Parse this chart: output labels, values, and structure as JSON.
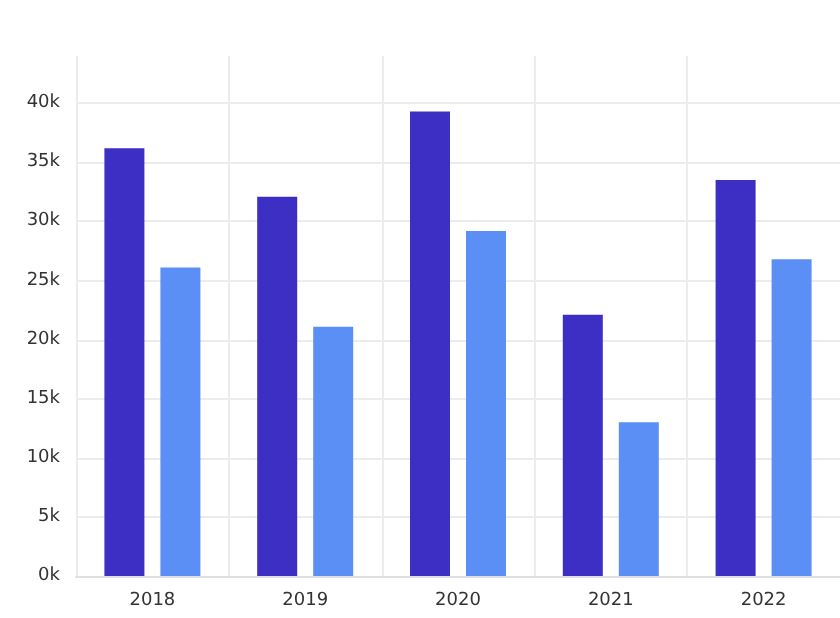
{
  "chart_data": {
    "type": "bar",
    "categories": [
      "2018",
      "2019",
      "2020",
      "2021",
      "2022"
    ],
    "series": [
      {
        "color": "#3d2ec4",
        "values": [
          36200,
          32100,
          39300,
          22100,
          33500
        ]
      },
      {
        "color": "#5b8ff5",
        "values": [
          26100,
          21100,
          29200,
          13000,
          26800
        ]
      }
    ],
    "ylim": [
      0,
      44000
    ],
    "yticks": [
      {
        "value": 0,
        "label": "0k"
      },
      {
        "value": 5000,
        "label": "5k"
      },
      {
        "value": 10000,
        "label": "10k"
      },
      {
        "value": 15000,
        "label": "15k"
      },
      {
        "value": 20000,
        "label": "20k"
      },
      {
        "value": 25000,
        "label": "25k"
      },
      {
        "value": 30000,
        "label": "30k"
      },
      {
        "value": 35000,
        "label": "35k"
      },
      {
        "value": 40000,
        "label": "40k"
      }
    ],
    "grid": true
  }
}
